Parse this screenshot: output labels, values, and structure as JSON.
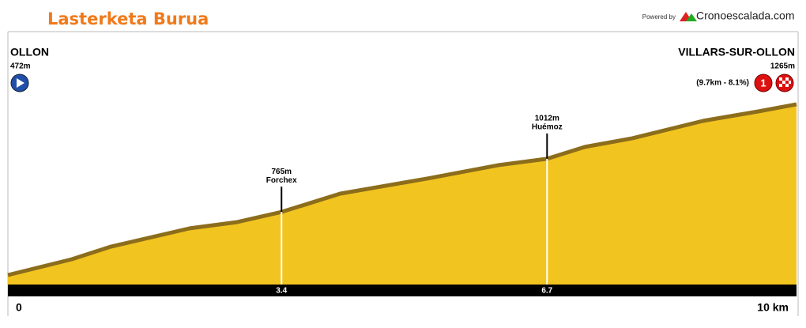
{
  "chart_data": {
    "type": "area",
    "title": "Lasterketa Burua",
    "powered_by": "Powered by",
    "brand": "Cronoescalada.com",
    "start": {
      "name": "OLLON",
      "label": "472m"
    },
    "end": {
      "name": "VILLARS-SUR-OLLON",
      "label": "1265m",
      "detail": "(9.7km - 8.1%)",
      "category": "1"
    },
    "x": [
      0,
      0.79,
      1.28,
      2.26,
      2.85,
      3.4,
      4.13,
      5.21,
      6.09,
      6.7,
      7.17,
      7.76,
      8.64,
      9.33,
      9.8
    ],
    "values": [
      472,
      545,
      604,
      689,
      718,
      765,
      850,
      920,
      982,
      1012,
      1067,
      1107,
      1188,
      1232,
      1265
    ],
    "color": "#f2c41f",
    "edge_color": "#8c6d1c",
    "xlim": [
      0,
      9.8
    ],
    "ylim": [
      428,
      1272
    ],
    "xticks": [
      0
    ],
    "x_end_label": "10 km",
    "annotations": [
      {
        "x": 3.4,
        "value": 765,
        "value_label": "765m",
        "name": "Forchex"
      },
      {
        "x": 6.7,
        "value": 1012,
        "value_label": "1012m",
        "name": "Huémoz"
      }
    ]
  }
}
